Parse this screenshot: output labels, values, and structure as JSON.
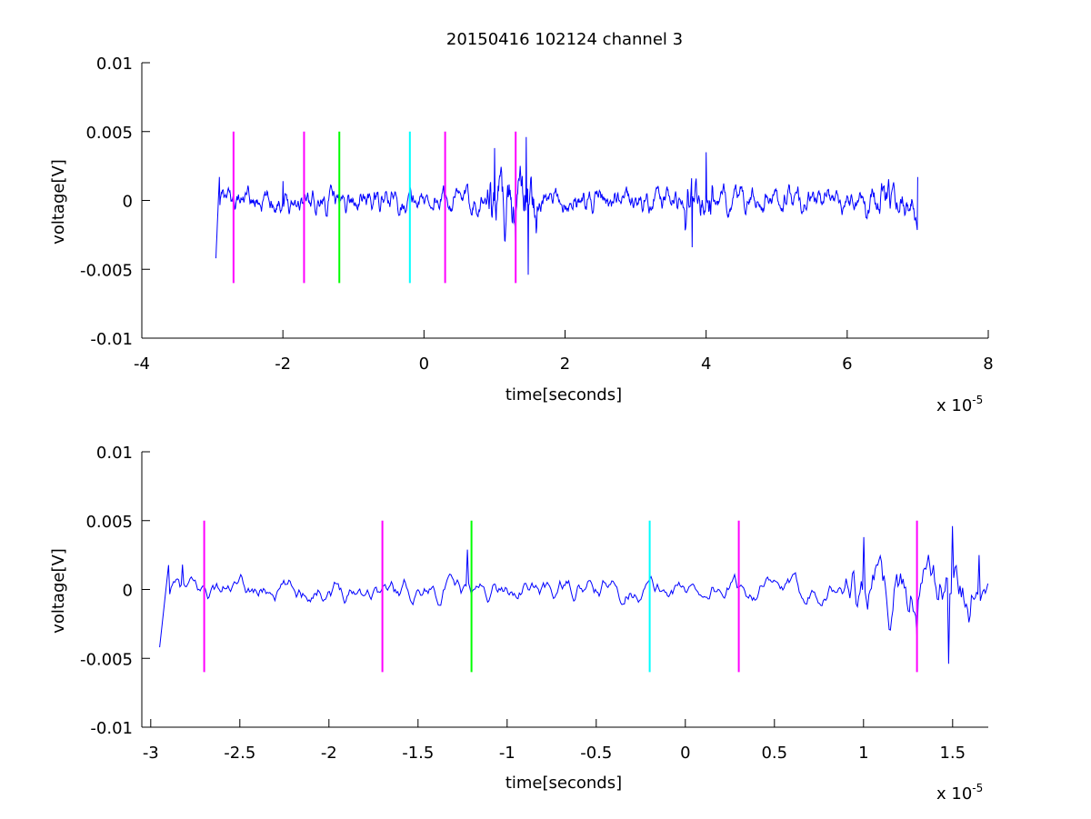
{
  "figure": {
    "title": "20150416 102124 channel 3"
  },
  "chart_data": [
    {
      "type": "line",
      "title": "20150416 102124 channel 3",
      "xlabel": "time[seconds]",
      "ylabel": "voltage[V]",
      "x_exponent_label": "x 10",
      "x_exponent": "-5",
      "xlim": [
        -4,
        8
      ],
      "ylim": [
        -0.01,
        0.01
      ],
      "xticks": [
        -4,
        -2,
        0,
        2,
        4,
        6,
        8
      ],
      "xtick_labels": [
        "-4",
        "-2",
        "0",
        "2",
        "4",
        "6",
        "8"
      ],
      "yticks": [
        0.01,
        0.005,
        0,
        -0.005,
        -0.01
      ],
      "ytick_labels": [
        "0.01",
        "0.005",
        "0",
        "-0.005",
        "-0.01"
      ],
      "grid": false,
      "signal": {
        "color": "#0000ff",
        "x_start": -2.95,
        "x_end": 7.0,
        "amplitude_profile": [
          {
            "x": -2.95,
            "y": -0.0042
          },
          {
            "x": -2.9,
            "y": 0.0017
          },
          {
            "x": -2.0,
            "y": 0.0014
          },
          {
            "x": 1.0,
            "y": 0.0038
          },
          {
            "x": 1.3,
            "y": -0.0035
          },
          {
            "x": 1.45,
            "y": 0.0046
          },
          {
            "x": 1.48,
            "y": -0.0054
          },
          {
            "x": 4.0,
            "y": 0.0035
          },
          {
            "x": 3.8,
            "y": -0.0034
          },
          {
            "x": 7.0,
            "y": 0.0017
          }
        ]
      },
      "markers": [
        {
          "x": -2.7,
          "ymin": -0.006,
          "ymax": 0.005,
          "color": "#ff00ff"
        },
        {
          "x": -1.7,
          "ymin": -0.006,
          "ymax": 0.005,
          "color": "#ff00ff"
        },
        {
          "x": -1.2,
          "ymin": -0.006,
          "ymax": 0.005,
          "color": "#00ff00"
        },
        {
          "x": -0.2,
          "ymin": -0.006,
          "ymax": 0.005,
          "color": "#00ffff"
        },
        {
          "x": 0.3,
          "ymin": -0.006,
          "ymax": 0.005,
          "color": "#ff00ff"
        },
        {
          "x": 1.3,
          "ymin": -0.006,
          "ymax": 0.005,
          "color": "#ff00ff"
        }
      ]
    },
    {
      "type": "line",
      "title": "",
      "xlabel": "time[seconds]",
      "ylabel": "voltage[V]",
      "x_exponent_label": "x 10",
      "x_exponent": "-5",
      "xlim": [
        -3.05,
        1.7
      ],
      "ylim": [
        -0.01,
        0.01
      ],
      "xticks": [
        -3,
        -2.5,
        -2,
        -1.5,
        -1,
        -0.5,
        0,
        0.5,
        1,
        1.5
      ],
      "xtick_labels": [
        "-3",
        "-2.5",
        "-2",
        "-1.5",
        "-1",
        "-0.5",
        "0",
        "0.5",
        "1",
        "1.5"
      ],
      "yticks": [
        0.01,
        0.005,
        0,
        -0.005,
        -0.01
      ],
      "ytick_labels": [
        "0.01",
        "0.005",
        "0",
        "-0.005",
        "-0.01"
      ],
      "grid": false,
      "signal": {
        "color": "#0000ff",
        "x_start": -2.95,
        "x_end": 1.7,
        "amplitude_profile": [
          {
            "x": -2.95,
            "y": -0.0042
          },
          {
            "x": -2.82,
            "y": 0.0018
          },
          {
            "x": -1.22,
            "y": 0.0029
          },
          {
            "x": 1.0,
            "y": 0.0038
          },
          {
            "x": 1.3,
            "y": -0.0035
          },
          {
            "x": 1.5,
            "y": 0.0046
          },
          {
            "x": 1.48,
            "y": -0.0054
          },
          {
            "x": 1.65,
            "y": 0.0025
          }
        ]
      },
      "markers": [
        {
          "x": -2.7,
          "ymin": -0.006,
          "ymax": 0.005,
          "color": "#ff00ff"
        },
        {
          "x": -1.7,
          "ymin": -0.006,
          "ymax": 0.005,
          "color": "#ff00ff"
        },
        {
          "x": -1.2,
          "ymin": -0.006,
          "ymax": 0.005,
          "color": "#00ff00"
        },
        {
          "x": -0.2,
          "ymin": -0.006,
          "ymax": 0.005,
          "color": "#00ffff"
        },
        {
          "x": 0.3,
          "ymin": -0.006,
          "ymax": 0.005,
          "color": "#ff00ff"
        },
        {
          "x": 1.3,
          "ymin": -0.006,
          "ymax": 0.005,
          "color": "#ff00ff"
        }
      ]
    }
  ]
}
